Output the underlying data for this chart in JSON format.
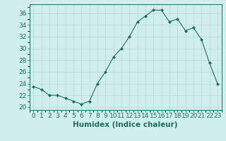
{
  "x": [
    0,
    1,
    2,
    3,
    4,
    5,
    6,
    7,
    8,
    9,
    10,
    11,
    12,
    13,
    14,
    15,
    16,
    17,
    18,
    19,
    20,
    21,
    22,
    23
  ],
  "y": [
    23.5,
    23.0,
    22.0,
    22.0,
    21.5,
    21.0,
    20.5,
    21.0,
    24.0,
    26.0,
    28.5,
    30.0,
    32.0,
    34.5,
    35.5,
    36.5,
    36.5,
    34.5,
    35.0,
    33.0,
    33.5,
    31.5,
    27.5,
    24.0
  ],
  "line_color": "#1a7060",
  "marker": "D",
  "marker_size": 2.0,
  "bg_color": "#d0eeee",
  "grid_major_color": "#b8d8d8",
  "grid_minor_color": "#c8e4e4",
  "xlabel": "Humidex (Indice chaleur)",
  "ylim": [
    19.5,
    37.5
  ],
  "yticks": [
    20,
    22,
    24,
    26,
    28,
    30,
    32,
    34,
    36
  ],
  "xlim": [
    -0.5,
    23.5
  ],
  "xticks": [
    0,
    1,
    2,
    3,
    4,
    5,
    6,
    7,
    8,
    9,
    10,
    11,
    12,
    13,
    14,
    15,
    16,
    17,
    18,
    19,
    20,
    21,
    22,
    23
  ],
  "xlabel_fontsize": 7.5,
  "tick_fontsize": 6.5
}
